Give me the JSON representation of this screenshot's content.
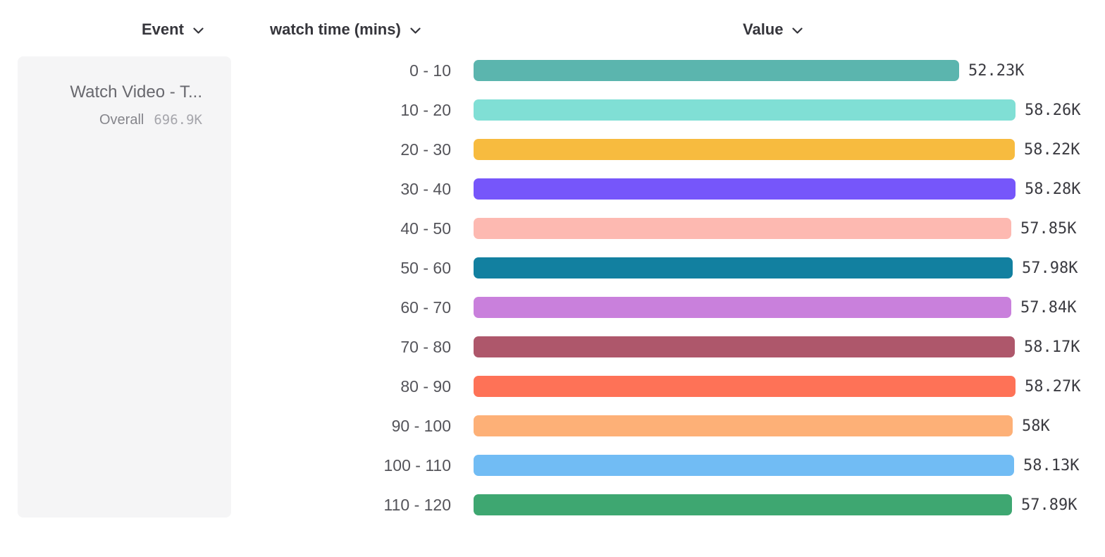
{
  "headers": {
    "event": "Event",
    "breakdown": "watch time (mins)",
    "value": "Value"
  },
  "event_card": {
    "name": "Watch Video - T...",
    "overall_label": "Overall",
    "overall_value": "696.9K"
  },
  "chart_data": {
    "type": "bar",
    "orientation": "horizontal",
    "title": "",
    "xlabel": "Value",
    "ylabel": "watch time (mins)",
    "categories": [
      "0 - 10",
      "10 - 20",
      "20 - 30",
      "30 - 40",
      "40 - 50",
      "50 - 60",
      "60 - 70",
      "70 - 80",
      "80 - 90",
      "90 - 100",
      "100 - 110",
      "110 - 120"
    ],
    "values": [
      52230,
      58260,
      58220,
      58280,
      57850,
      57980,
      57840,
      58170,
      58270,
      58000,
      58130,
      57890
    ],
    "value_labels": [
      "52.23K",
      "58.26K",
      "58.22K",
      "58.28K",
      "57.85K",
      "57.98K",
      "57.84K",
      "58.17K",
      "58.27K",
      "58K",
      "58.13K",
      "57.89K"
    ],
    "bar_colors": [
      "#5bb5ae",
      "#80dfd5",
      "#f7bb3f",
      "#7656fa",
      "#fdb9b1",
      "#1280a0",
      "#c980dc",
      "#ae576b",
      "#fe7257",
      "#fdb077",
      "#71bcf4",
      "#3ea771"
    ],
    "xlim": [
      0,
      58280
    ],
    "grid": false,
    "legend": false
  }
}
